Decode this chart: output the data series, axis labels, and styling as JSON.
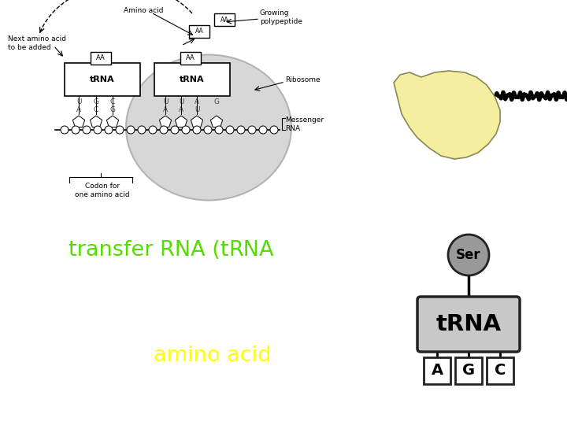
{
  "bg_top": "#ffffff",
  "bg_bottom": "#2d5085",
  "trna_box_color": "#c8c8c8",
  "trna_box_edge": "#222222",
  "ser_circle_color": "#999999",
  "ser_circle_edge": "#222222",
  "codon_box_color": "#ffffff",
  "codon_box_edge": "#222222",
  "codon_letters": [
    "A",
    "G",
    "C"
  ],
  "trna_label": "tRNA",
  "ser_label": "Ser",
  "green_color": "#55dd00",
  "yellow_color": "#ffff00",
  "white_color": "#ffffff",
  "black_color": "#000000",
  "ribosome_color": "#d0d0d0",
  "ribosome_edge": "#aaaaaa",
  "mrna_backbone": "#333333",
  "blob_fill": "#f5eea0",
  "blob_edge": "#888855"
}
